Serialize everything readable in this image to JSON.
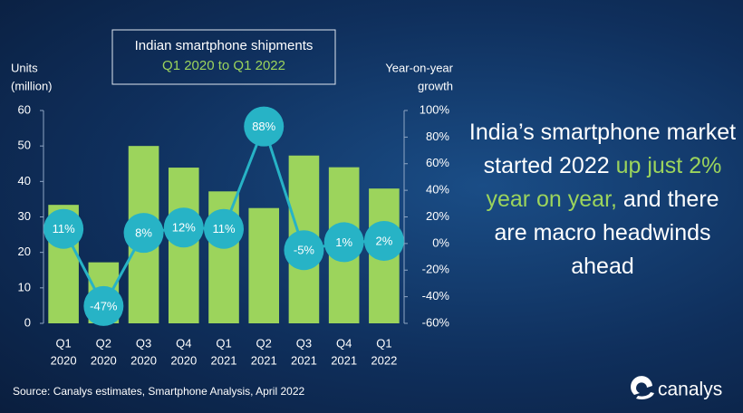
{
  "chart_data": {
    "type": "bar",
    "title": "Indian smartphone shipments",
    "subtitle": "Q1 2020 to Q1 2022",
    "y_label": [
      "Units",
      "(million)"
    ],
    "y2_label": [
      "Year-on-year",
      "growth"
    ],
    "categories": [
      [
        "Q1",
        "2020"
      ],
      [
        "Q2",
        "2020"
      ],
      [
        "Q3",
        "2020"
      ],
      [
        "Q4",
        "2020"
      ],
      [
        "Q1",
        "2021"
      ],
      [
        "Q2",
        "2021"
      ],
      [
        "Q3",
        "2021"
      ],
      [
        "Q4",
        "2021"
      ],
      [
        "Q1",
        "2022"
      ]
    ],
    "series": [
      {
        "color": "#9cd45c",
        "values": [
          33.4,
          17.2,
          50,
          43.9,
          37.2,
          32.5,
          47.3,
          44,
          38
        ]
      },
      {
        "type": "line",
        "axis": "y2",
        "color": "#27b3c6",
        "values": [
          11,
          -47,
          8,
          12,
          11,
          88,
          -5,
          1,
          2
        ],
        "value_labels": [
          "11%",
          "-47%",
          "8%",
          "12%",
          "11%",
          "88%",
          "-5%",
          "1%",
          "2%"
        ]
      }
    ],
    "ylim": [
      0,
      60
    ],
    "yticks": [
      0,
      10,
      20,
      30,
      40,
      50,
      60
    ],
    "y2lim": [
      -60,
      100
    ],
    "y2ticks": [
      {
        "value": -60,
        "label": "-60%"
      },
      {
        "value": -40,
        "label": "-40%"
      },
      {
        "value": -20,
        "label": "-20%"
      },
      {
        "value": 0,
        "label": "0%"
      },
      {
        "value": 20,
        "label": "20%"
      },
      {
        "value": 40,
        "label": "40%"
      },
      {
        "value": 60,
        "label": "60%"
      },
      {
        "value": 80,
        "label": "80%"
      },
      {
        "value": 100,
        "label": "100%"
      }
    ],
    "headline": [
      "India’s smartphone market started 2022 ",
      "up just 2% year on year,",
      " and there are macro headwinds ahead"
    ],
    "source": "Source: Canalys estimates, Smartphone Analysis, April 2022",
    "logo": "canalys"
  }
}
